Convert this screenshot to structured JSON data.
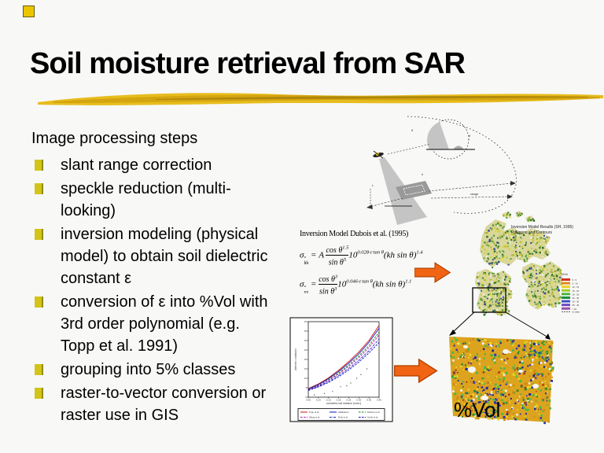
{
  "slide": {
    "title": "Soil moisture retrieval from SAR",
    "list_header": "Image processing steps",
    "bullets": [
      "slant range correction",
      "speckle reduction (multi-\nlooking)",
      "inversion modeling (physical\nmodel) to obtain soil dielectric\nconstant ε",
      "conversion of ε into %Vol with\n3rd order polynomial (e.g.\nTopp et al. 1991)",
      "grouping into 5% classes",
      "raster-to-vector conversion or\nraster use in GIS"
    ],
    "vol_label": "%Vol"
  },
  "equations": {
    "heading": "Inversion Model Dubois et al. (1995)",
    "eq1": {
      "lhs": "σ",
      "lhs_sup": "°",
      "lhs_sub": "hh",
      "eq": " = ",
      "coef": "A",
      "num": "cos θ",
      "num_exp": "1.5",
      "den": "sin θ",
      "den_exp": "5",
      "pow_base": "10",
      "pow_exp": "0.028·ε·tan θ",
      "tail": "(kh sin θ)",
      "tail_exp": "1.4"
    },
    "eq2": {
      "lhs": "σ",
      "lhs_sup": "°",
      "lhs_sub": "vv",
      "eq": " = ",
      "coef": "",
      "num": "cos θ",
      "num_exp": "3",
      "den": "sin θ",
      "den_exp": "3",
      "pow_base": "10",
      "pow_exp": "0.046·ε·tan θ",
      "tail": "(kh sin θ)",
      "tail_exp": "1.1"
    }
  },
  "diagram": {
    "annotations": [
      "θ",
      "θ",
      "h",
      "range",
      "L"
    ]
  },
  "map": {
    "title_line1": "Inversion Model Results (SH, 1995)",
    "title_line2": "Polygons and Contours",
    "legend_title": "%Vol",
    "legend": [
      {
        "color": "#d62e1e",
        "label": "0 - 5"
      },
      {
        "color": "#e2891c",
        "label": "5 - 10"
      },
      {
        "color": "#e6d61e",
        "label": "10 - 15"
      },
      {
        "color": "#a6cc28",
        "label": "15 - 20"
      },
      {
        "color": "#46b43c",
        "label": "20 - 25"
      },
      {
        "color": "#1e8c3c",
        "label": "25 - 30"
      },
      {
        "color": "#3c50c8",
        "label": "30 - 35"
      },
      {
        "color": "#6a46be",
        "label": "35 - 40"
      },
      {
        "color": "#9a50a8",
        "label": "> 40"
      }
    ],
    "legend_note": "no data",
    "speckle_colors": [
      "#d2cc3e",
      "#d2cc3e",
      "#a8b032",
      "#a8b032",
      "#57a23c",
      "#57a23c",
      "#3d7c30",
      "#e4dd55",
      "#2f6e2f",
      "#eeeeee",
      "#3a4a9a"
    ]
  },
  "raster": {
    "speckle_colors": [
      "#e0a41e",
      "#e0a41e",
      "#e0a41e",
      "#cf8c16",
      "#cf8c16",
      "#e6d62a",
      "#e6d62a",
      "#48b848",
      "#48b848",
      "#2f8a30",
      "#3434b0",
      "#22249a",
      "#a84012",
      "#f2f2f2"
    ]
  },
  "chart_data": {
    "type": "line",
    "x": [
      0.05,
      0.1,
      0.15,
      0.2,
      0.25,
      0.3,
      0.35,
      0.4
    ],
    "series": [
      {
        "name": "Topp et al.",
        "color": "#cc1111",
        "style": "solid",
        "values": [
          4.5,
          7.0,
          10.2,
          14.2,
          18.8,
          24.0,
          30.0,
          38.0
        ]
      },
      {
        "name": "Hallikainen",
        "color": "#1111bb",
        "style": "solid",
        "values": [
          4.3,
          6.7,
          9.8,
          13.6,
          18.0,
          23.0,
          29.0,
          36.5
        ]
      },
      {
        "name": "Dobson et al.",
        "color": "#118811",
        "style": "dash",
        "values": [
          4.1,
          6.3,
          9.2,
          12.8,
          17.0,
          21.8,
          27.3,
          34.5
        ]
      },
      {
        "name": "Wang et al.",
        "color": "#bb11bb",
        "style": "dash",
        "values": [
          4.0,
          6.1,
          8.9,
          12.3,
          16.3,
          20.9,
          26.2,
          33.0
        ]
      },
      {
        "name": "Roth et al.",
        "color": "#1111bb",
        "style": "dashdot",
        "values": [
          3.8,
          5.7,
          8.3,
          11.5,
          15.2,
          19.6,
          24.6,
          30.8
        ]
      },
      {
        "name": "Smith et al.",
        "color": "#1111bb",
        "style": "dash",
        "values": [
          3.6,
          5.4,
          7.8,
          10.8,
          14.4,
          18.6,
          23.4,
          29.0
        ]
      }
    ],
    "scatter": [
      [
        0.08,
        1.2
      ],
      [
        0.13,
        2.0
      ],
      [
        0.17,
        3.0
      ],
      [
        0.21,
        5.5
      ],
      [
        0.24,
        6.0
      ],
      [
        0.26,
        7.5
      ],
      [
        0.29,
        10.0
      ],
      [
        0.31,
        12.0
      ],
      [
        0.34,
        15.0
      ]
    ],
    "xlabel": "volumetric soil moisture [m³/m³]",
    "ylabel": "dielectric constant ε",
    "xlim": [
      0.05,
      0.4
    ],
    "ylim": [
      0,
      40
    ],
    "x_ticks": [
      "0.05",
      "0.10",
      "0.15",
      "0.20",
      "0.25",
      "0.30",
      "0.35",
      "0.40"
    ],
    "y_ticks": [
      "0",
      "5",
      "10",
      "15",
      "20",
      "25",
      "30",
      "35",
      "40"
    ],
    "legend_position": "bottom"
  },
  "colors": {
    "bullet_yellow": "#d2c419",
    "swoosh_gold": "#dfae12",
    "arrow_orange": "#f06414",
    "arrow_border": "#b54300"
  }
}
